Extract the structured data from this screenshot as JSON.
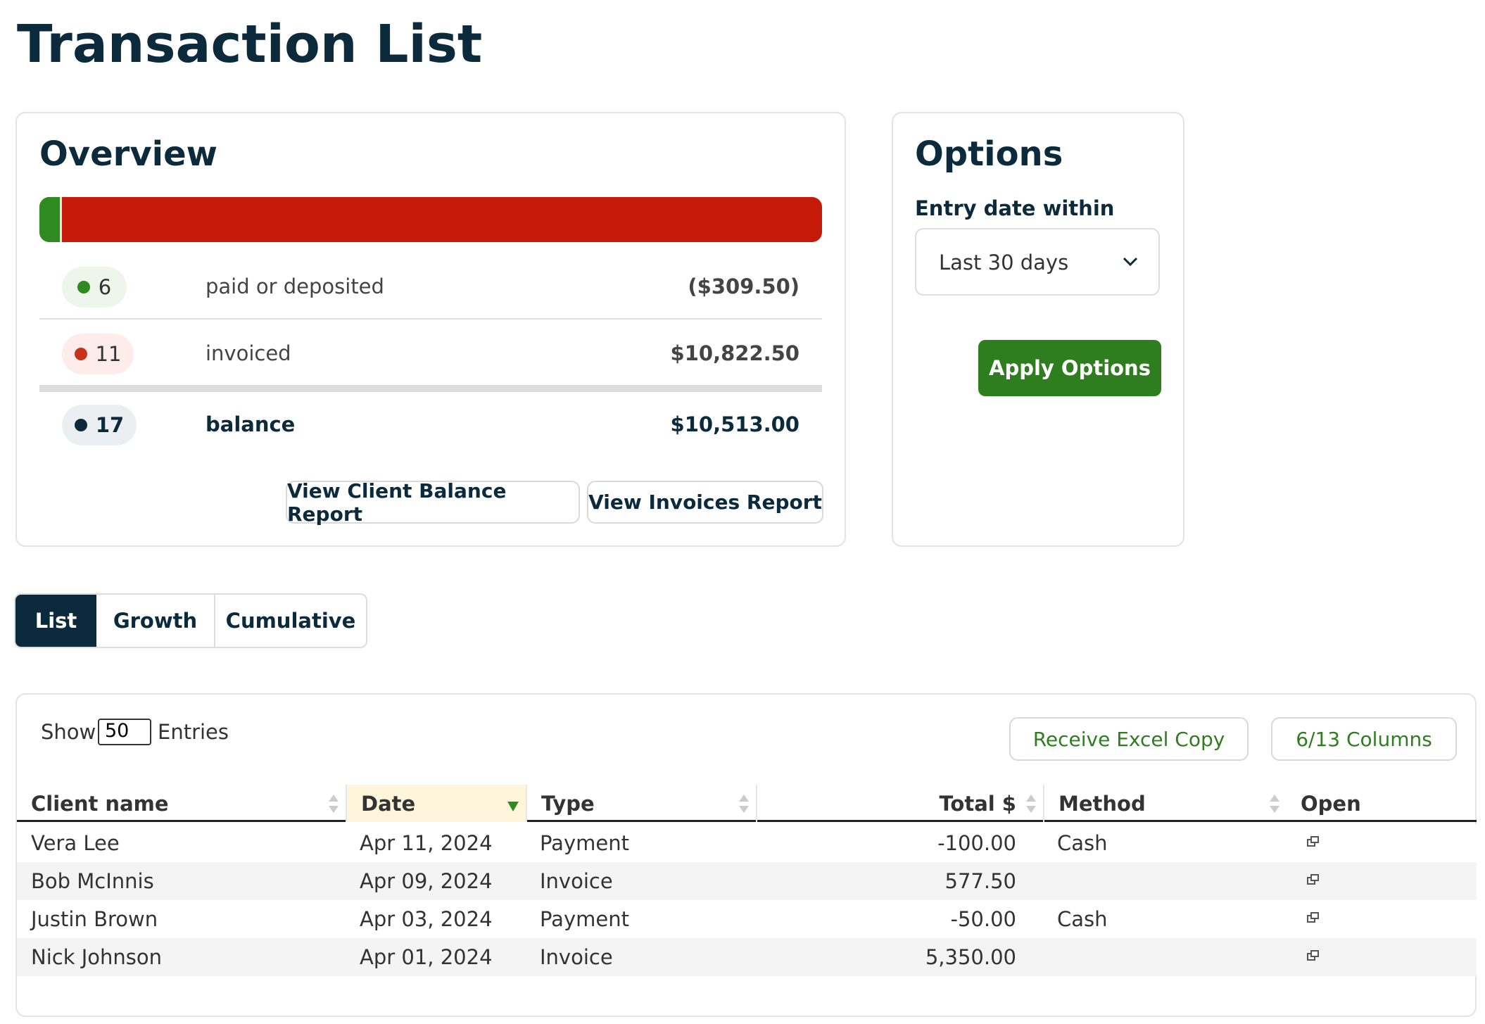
{
  "header": {
    "title": "Transaction List"
  },
  "overview": {
    "title": "Overview",
    "rows": [
      {
        "count": 6,
        "label": "paid or deposited",
        "amount": "($309.50)"
      },
      {
        "count": 11,
        "label": "invoiced",
        "amount": "$10,822.50"
      },
      {
        "count": 17,
        "label": "balance",
        "amount": "$10,513.00"
      }
    ],
    "buttons": [
      "View Client Balance Report",
      "View Invoices Report"
    ]
  },
  "options": {
    "title": "Options",
    "field_label": "Entry date within",
    "select_value": "Last 30 days",
    "button": "Apply Options"
  },
  "tabs": [
    "List",
    "Growth",
    "Cumulative"
  ],
  "table": {
    "show": "Show",
    "entries_value": "50",
    "entries": "Entries",
    "excel_button": "Receive Excel Copy",
    "columns_button": "6/13 Columns",
    "columns": [
      "Client name",
      "Date",
      "Type",
      "Total $",
      "Method",
      "Open"
    ],
    "rows": [
      [
        "Vera Lee",
        "Apr 11, 2024",
        "Payment",
        "-100.00",
        "Cash"
      ],
      [
        "Bob McInnis",
        "Apr 09, 2024",
        "Invoice",
        "577.50",
        null
      ],
      [
        "Justin Brown",
        "Apr 03, 2024",
        "Payment",
        "-50.00",
        "Cash"
      ],
      [
        "Nick Johnson",
        "Apr 01, 2024",
        "Invoice",
        "5,350.00",
        null
      ]
    ]
  }
}
